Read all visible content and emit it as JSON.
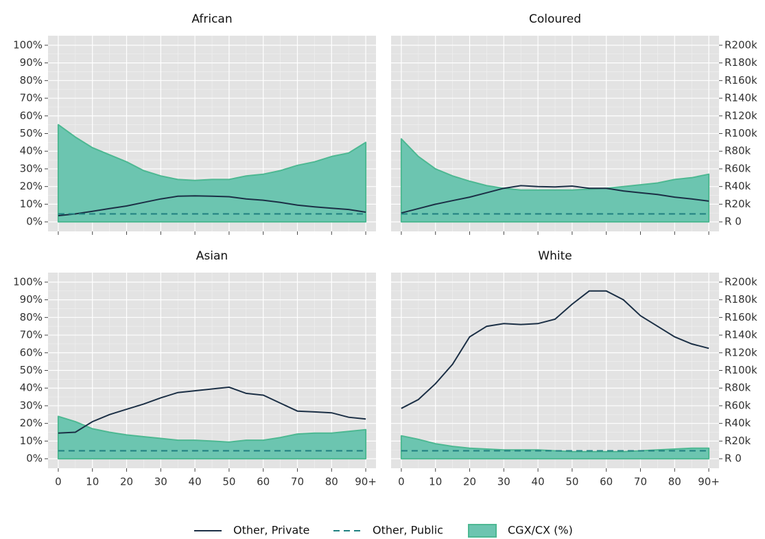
{
  "chart_data": {
    "type": "line",
    "x": [
      0,
      5,
      10,
      15,
      20,
      25,
      30,
      35,
      40,
      45,
      50,
      55,
      60,
      65,
      70,
      75,
      80,
      85,
      90
    ],
    "xlim": [
      -3,
      93
    ],
    "xticks": [
      0,
      10,
      20,
      30,
      40,
      50,
      60,
      70,
      80,
      {
        "value": 90,
        "label": "90+"
      }
    ],
    "ylim": [
      -5.4,
      105.4
    ],
    "yticks": [
      {
        "value": 0,
        "label": "0%"
      },
      {
        "value": 10,
        "label": "10%"
      },
      {
        "value": 20,
        "label": "20%"
      },
      {
        "value": 30,
        "label": "30%"
      },
      {
        "value": 40,
        "label": "40%"
      },
      {
        "value": 50,
        "label": "50%"
      },
      {
        "value": 60,
        "label": "60%"
      },
      {
        "value": 70,
        "label": "70%"
      },
      {
        "value": 80,
        "label": "80%"
      },
      {
        "value": 90,
        "label": "90%"
      },
      {
        "value": 100,
        "label": "100%"
      }
    ],
    "y2lim": [
      -10800,
      210800
    ],
    "y2ticks": [
      {
        "value": 0,
        "label": "R 0"
      },
      {
        "value": 20000,
        "label": "R20k"
      },
      {
        "value": 40000,
        "label": "R40k"
      },
      {
        "value": 60000,
        "label": "R60k"
      },
      {
        "value": 80000,
        "label": "R80k"
      },
      {
        "value": 100000,
        "label": "R100k"
      },
      {
        "value": 120000,
        "label": "R120k"
      },
      {
        "value": 140000,
        "label": "R140k"
      },
      {
        "value": 160000,
        "label": "R160k"
      },
      {
        "value": 180000,
        "label": "R180k"
      },
      {
        "value": 200000,
        "label": "R200k"
      }
    ],
    "grid": true,
    "legend_position": "bottom",
    "series": [
      {
        "name": "Other, Private",
        "color": "#1b2f45",
        "style": "solid",
        "axis": "y2"
      },
      {
        "name": "Other, Public",
        "color": "#1f8080",
        "style": "dashed",
        "axis": "y2"
      },
      {
        "name": "CGX/CX (%)",
        "color": "#6cc5b0",
        "style": "area",
        "axis": "y"
      }
    ],
    "panels": [
      {
        "title": "African",
        "values": [
          [
            7000,
            9000,
            12000,
            15000,
            18000,
            22000,
            26000,
            29000,
            29500,
            29000,
            28500,
            26000,
            24500,
            22000,
            19000,
            17000,
            15500,
            14000,
            11000
          ],
          [
            9000,
            9000,
            9000,
            9000,
            9000,
            9000,
            9000,
            9000,
            9000,
            9000,
            9000,
            9000,
            9000,
            9000,
            9000,
            9000,
            9000,
            9000,
            9000
          ],
          [
            55,
            48,
            42,
            38,
            34,
            29,
            26,
            24,
            23.5,
            24,
            24,
            26,
            27,
            29,
            32,
            34,
            37,
            39,
            45
          ]
        ]
      },
      {
        "title": "Coloured",
        "values": [
          [
            10000,
            15000,
            20000,
            24000,
            28000,
            33000,
            38000,
            41000,
            40000,
            39500,
            40500,
            38000,
            38000,
            35000,
            33000,
            31000,
            28000,
            26000,
            23500
          ],
          [
            9000,
            9000,
            9000,
            9000,
            9000,
            9000,
            9000,
            9000,
            9000,
            9000,
            9000,
            9000,
            9000,
            9000,
            9000,
            9000,
            9000,
            9000,
            9000
          ],
          [
            47,
            37,
            30,
            26,
            23,
            20.5,
            19,
            18,
            18,
            18,
            18,
            18.5,
            19,
            20,
            21,
            22,
            24,
            25,
            27
          ]
        ]
      },
      {
        "title": "Asian",
        "values": [
          [
            29000,
            30000,
            42000,
            50000,
            56000,
            62000,
            69000,
            75000,
            77000,
            79000,
            81000,
            74000,
            72000,
            63000,
            54000,
            53000,
            52000,
            47000,
            45000
          ],
          [
            9000,
            9000,
            9000,
            9000,
            9000,
            9000,
            9000,
            9000,
            9000,
            9000,
            9000,
            9000,
            9000,
            9000,
            9000,
            9000,
            9000,
            9000,
            9000
          ],
          [
            24,
            21,
            17,
            15,
            13.5,
            12.5,
            11.5,
            10.5,
            10.5,
            10,
            9.5,
            10.5,
            10.5,
            12,
            14,
            14.5,
            14.5,
            15.5,
            16.5
          ]
        ]
      },
      {
        "title": "White",
        "values": [
          [
            57000,
            67000,
            85000,
            107000,
            138000,
            150000,
            153000,
            152000,
            153000,
            158000,
            175000,
            190000,
            190000,
            180000,
            162000,
            150000,
            138000,
            130000,
            125000
          ],
          [
            9000,
            9000,
            9000,
            9000,
            9000,
            9000,
            9000,
            9000,
            9000,
            9000,
            9000,
            9000,
            9000,
            9000,
            9000,
            9000,
            9000,
            9000,
            9000
          ],
          [
            13,
            11,
            8.5,
            7,
            6,
            5.5,
            5,
            5,
            5,
            4.5,
            4,
            4,
            4,
            4,
            4.5,
            5,
            5.5,
            6,
            6
          ]
        ]
      }
    ]
  }
}
